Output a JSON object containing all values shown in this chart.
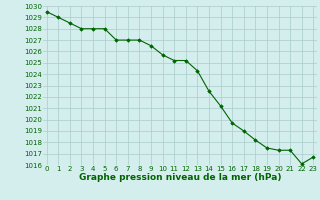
{
  "x": [
    0,
    1,
    2,
    3,
    4,
    5,
    6,
    7,
    8,
    9,
    10,
    11,
    12,
    13,
    14,
    15,
    16,
    17,
    18,
    19,
    20,
    21,
    22,
    23
  ],
  "y": [
    1029.5,
    1029.0,
    1028.5,
    1028.0,
    1028.0,
    1028.0,
    1027.0,
    1027.0,
    1027.0,
    1026.5,
    1025.7,
    1025.2,
    1025.2,
    1024.3,
    1022.5,
    1021.2,
    1019.7,
    1019.0,
    1018.2,
    1017.5,
    1017.3,
    1017.3,
    1016.1,
    1016.7
  ],
  "ylim": [
    1016,
    1030
  ],
  "xlim": [
    -0.3,
    23.3
  ],
  "yticks": [
    1016,
    1017,
    1018,
    1019,
    1020,
    1021,
    1022,
    1023,
    1024,
    1025,
    1026,
    1027,
    1028,
    1029,
    1030
  ],
  "xticks": [
    0,
    1,
    2,
    3,
    4,
    5,
    6,
    7,
    8,
    9,
    10,
    11,
    12,
    13,
    14,
    15,
    16,
    17,
    18,
    19,
    20,
    21,
    22,
    23
  ],
  "xlabel": "Graphe pression niveau de la mer (hPa)",
  "line_color": "#006400",
  "marker": "D",
  "marker_size": 1.8,
  "bg_color": "#d4eeee",
  "grid_color": "#aacccc",
  "tick_fontsize": 5.0,
  "xlabel_fontsize": 6.5,
  "xlabel_bold": true
}
